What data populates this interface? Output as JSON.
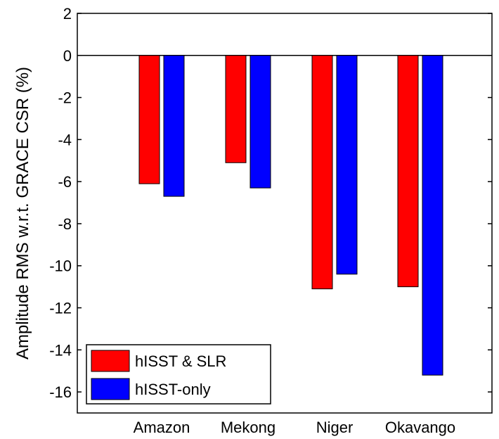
{
  "chart_data": {
    "type": "bar",
    "title": "",
    "xlabel": "",
    "ylabel": "Amplitude RMS w.r.t. GRACE CSR (%)",
    "categories": [
      "Amazon",
      "Mekong",
      "Niger",
      "Okavango"
    ],
    "series": [
      {
        "name": "hISST & SLR",
        "color": "#ff0000",
        "values": [
          -6.1,
          -5.1,
          -11.1,
          -11.0
        ]
      },
      {
        "name": "hISST-only",
        "color": "#0000ff",
        "values": [
          -6.7,
          -6.3,
          -10.4,
          -15.2
        ]
      }
    ],
    "ylim": [
      -17,
      2
    ],
    "yticks": [
      2,
      0,
      -2,
      -4,
      -6,
      -8,
      -10,
      -12,
      -14,
      -16
    ],
    "ytick_labels": [
      "2",
      "0",
      "-2",
      "-4",
      "-6",
      "-8",
      "-10",
      "-12",
      "-14",
      "-16"
    ],
    "grid": false,
    "legend_position": "bottom-left",
    "zero_line": true
  }
}
